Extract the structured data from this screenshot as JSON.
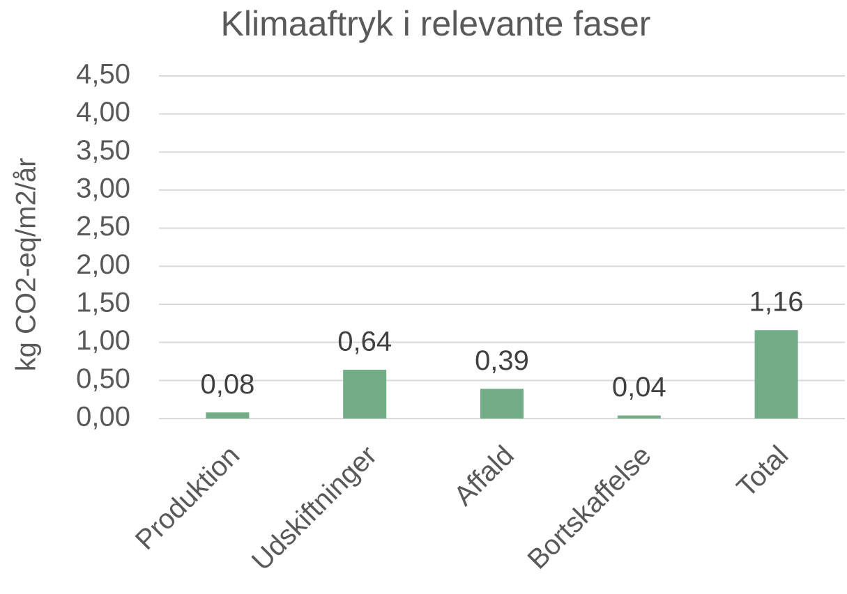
{
  "chart_data": {
    "type": "bar",
    "title": "Klimaaftryk i relevante faser",
    "y_axis_label": "kg CO2-eq/m2/år",
    "categories": [
      "Produktion",
      "Udskiftninger",
      "Affald",
      "Bortskaffelse",
      "Total"
    ],
    "values": [
      0.08,
      0.64,
      0.39,
      0.04,
      1.16
    ],
    "value_labels": [
      "0,08",
      "0,64",
      "0,39",
      "0,04",
      "1,16"
    ],
    "color": "#72ad88",
    "ylim": [
      0,
      4.5
    ],
    "yticks": [
      {
        "value": 0,
        "label": "0,00"
      },
      {
        "value": 0.5,
        "label": "0,50"
      },
      {
        "value": 1,
        "label": "1,00"
      },
      {
        "value": 1.5,
        "label": "1,50"
      },
      {
        "value": 2,
        "label": "2,00"
      },
      {
        "value": 2.5,
        "label": "2,50"
      },
      {
        "value": 3,
        "label": "3,00"
      },
      {
        "value": 3.5,
        "label": "3,50"
      },
      {
        "value": 4,
        "label": "4,00"
      },
      {
        "value": 4.5,
        "label": "4,50"
      }
    ],
    "grid": true
  }
}
